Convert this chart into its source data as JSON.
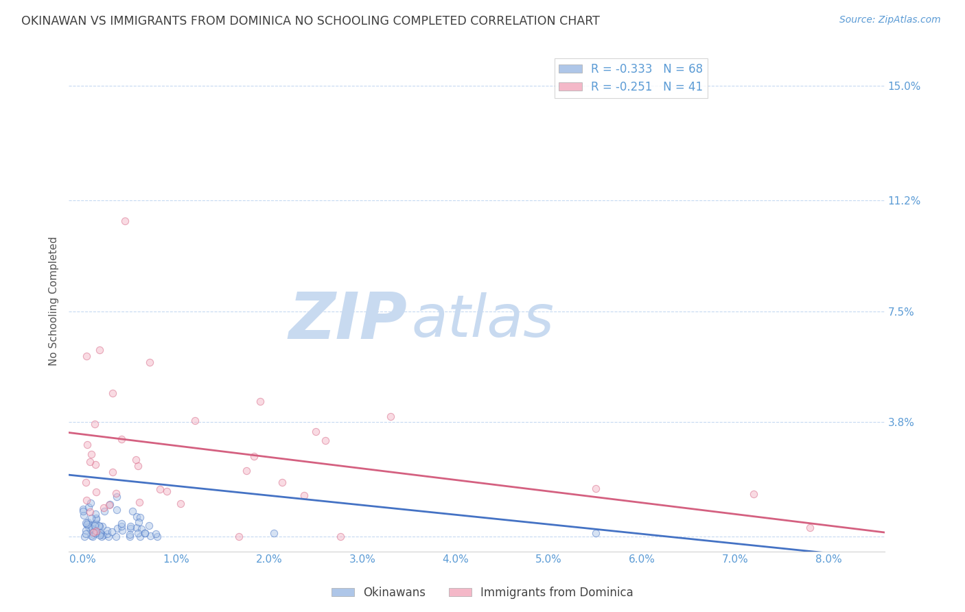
{
  "title": "OKINAWAN VS IMMIGRANTS FROM DOMINICA NO SCHOOLING COMPLETED CORRELATION CHART",
  "source_text": "Source: ZipAtlas.com",
  "xlabel_ticks": [
    0.0,
    1.0,
    2.0,
    3.0,
    4.0,
    5.0,
    6.0,
    7.0,
    8.0
  ],
  "ylabel_ticks": [
    3.8,
    7.5,
    11.2,
    15.0
  ],
  "xlabel_labels": [
    "0.0%",
    "1.0%",
    "2.0%",
    "3.0%",
    "4.0%",
    "5.0%",
    "6.0%",
    "7.0%",
    "8.0%"
  ],
  "ylabel_labels": [
    "3.8%",
    "7.5%",
    "11.2%",
    "15.0%"
  ],
  "ylabel_label": "No Schooling Completed",
  "xmin": -0.15,
  "xmax": 8.6,
  "ymin": -0.5,
  "ymax": 16.2,
  "series": [
    {
      "name": "Okinawans",
      "R": -0.333,
      "N": 68,
      "color": "#aec6e8",
      "edge_color": "#4472c4",
      "size": 55,
      "alpha": 0.5
    },
    {
      "name": "Immigrants from Dominica",
      "R": -0.251,
      "N": 41,
      "color": "#f4b8c8",
      "edge_color": "#d46080",
      "size": 55,
      "alpha": 0.5
    }
  ],
  "line_colors": [
    "#4472c4",
    "#d46080"
  ],
  "title_color": "#404040",
  "axis_color": "#5b9bd5",
  "grid_color": "#c5d9f1",
  "background_color": "#ffffff",
  "watermark_zip_color": "#c8daf0",
  "watermark_atlas_color": "#c8daf0"
}
